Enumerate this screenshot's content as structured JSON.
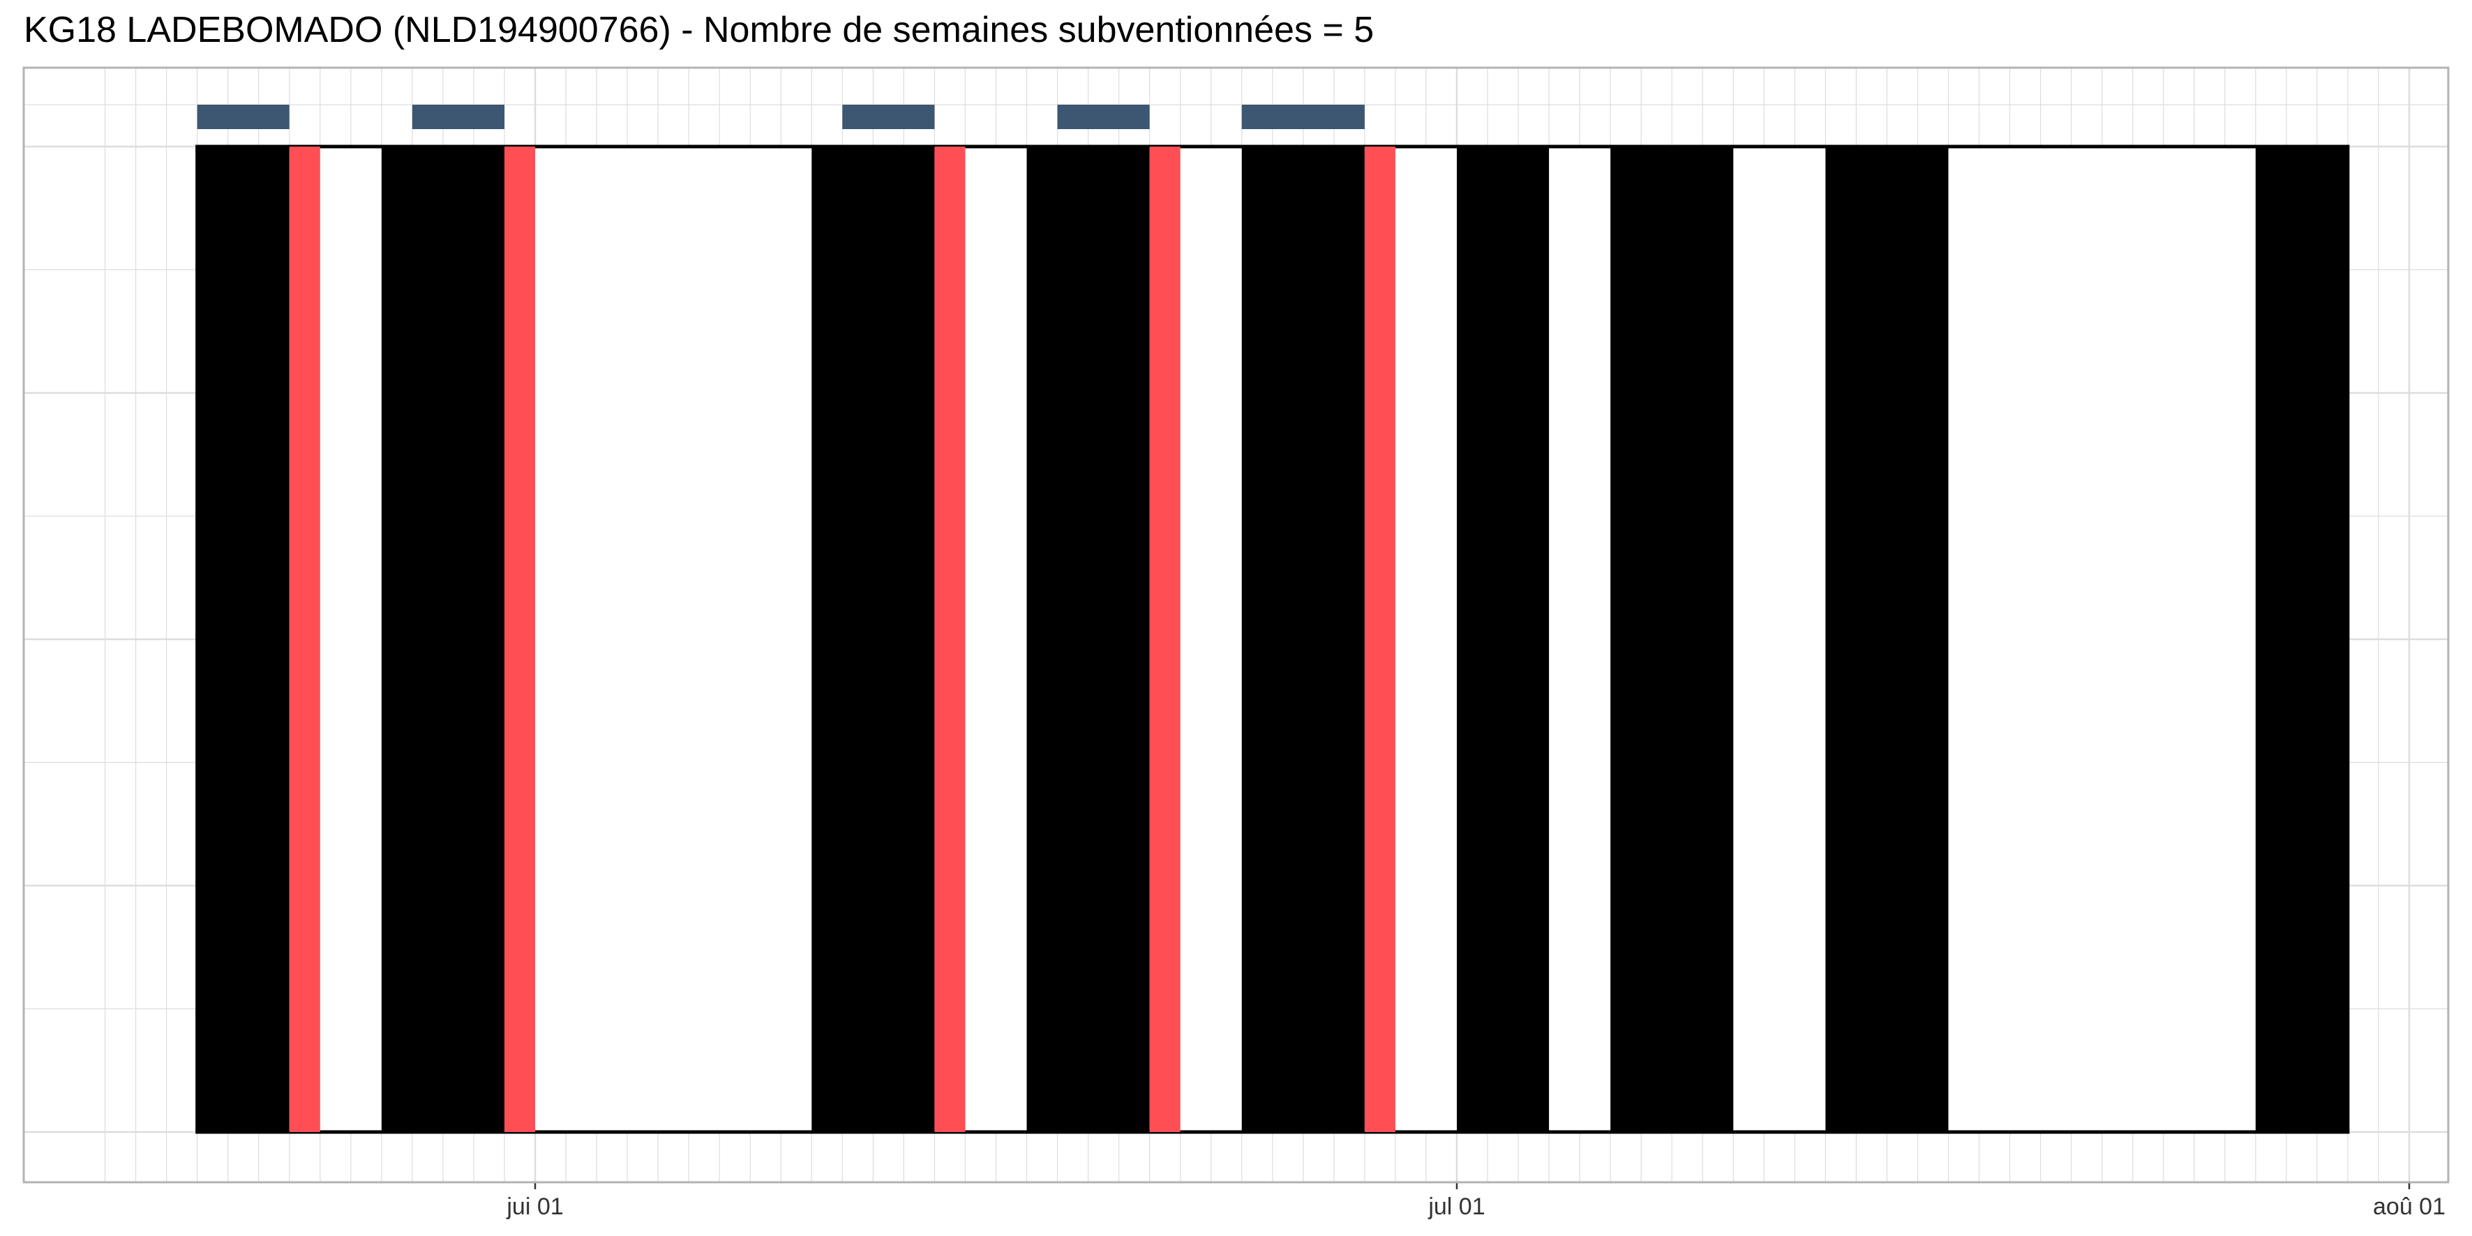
{
  "chart_data": {
    "type": "bar",
    "title": "KG18 LADEBOMADO (NLD194900766) - Nombre de semaines subventionnées = 5",
    "xlabel": "",
    "ylabel": "",
    "x_axis": {
      "type": "date",
      "range": [
        "2024-05-18",
        "2024-08-01"
      ],
      "ticks": [
        {
          "date": "2024-06-01",
          "label": "jui 01"
        },
        {
          "date": "2024-07-01",
          "label": "jul 01"
        },
        {
          "date": "2024-08-01",
          "label": "aoû 01"
        }
      ]
    },
    "grid": true,
    "black_bands": [
      {
        "start": "2024-05-21",
        "end": "2024-05-24"
      },
      {
        "start": "2024-05-27",
        "end": "2024-05-31"
      },
      {
        "start": "2024-06-10",
        "end": "2024-06-14"
      },
      {
        "start": "2024-06-17",
        "end": "2024-06-21"
      },
      {
        "start": "2024-06-24",
        "end": "2024-06-28"
      },
      {
        "start": "2024-07-01",
        "end": "2024-07-04"
      },
      {
        "start": "2024-07-06",
        "end": "2024-07-10"
      },
      {
        "start": "2024-07-13",
        "end": "2024-07-17"
      },
      {
        "start": "2024-07-27",
        "end": "2024-07-30"
      }
    ],
    "red_bands": [
      {
        "start": "2024-05-24",
        "end": "2024-05-25"
      },
      {
        "start": "2024-05-31",
        "end": "2024-06-01"
      },
      {
        "start": "2024-06-14",
        "end": "2024-06-15"
      },
      {
        "start": "2024-06-21",
        "end": "2024-06-22"
      },
      {
        "start": "2024-06-28",
        "end": "2024-06-29"
      }
    ],
    "blue_markers": [
      {
        "start": "2024-05-21",
        "end": "2024-05-24"
      },
      {
        "start": "2024-05-28",
        "end": "2024-05-31"
      },
      {
        "start": "2024-06-11",
        "end": "2024-06-14"
      },
      {
        "start": "2024-06-18",
        "end": "2024-06-21"
      },
      {
        "start": "2024-06-24",
        "end": "2024-06-28"
      }
    ],
    "colors": {
      "black_band": "#000000",
      "red_band": "#ff4f55",
      "blue_marker": "#3d5671",
      "grid": "#dddddd",
      "panel_border": "#b3b3b3"
    }
  }
}
